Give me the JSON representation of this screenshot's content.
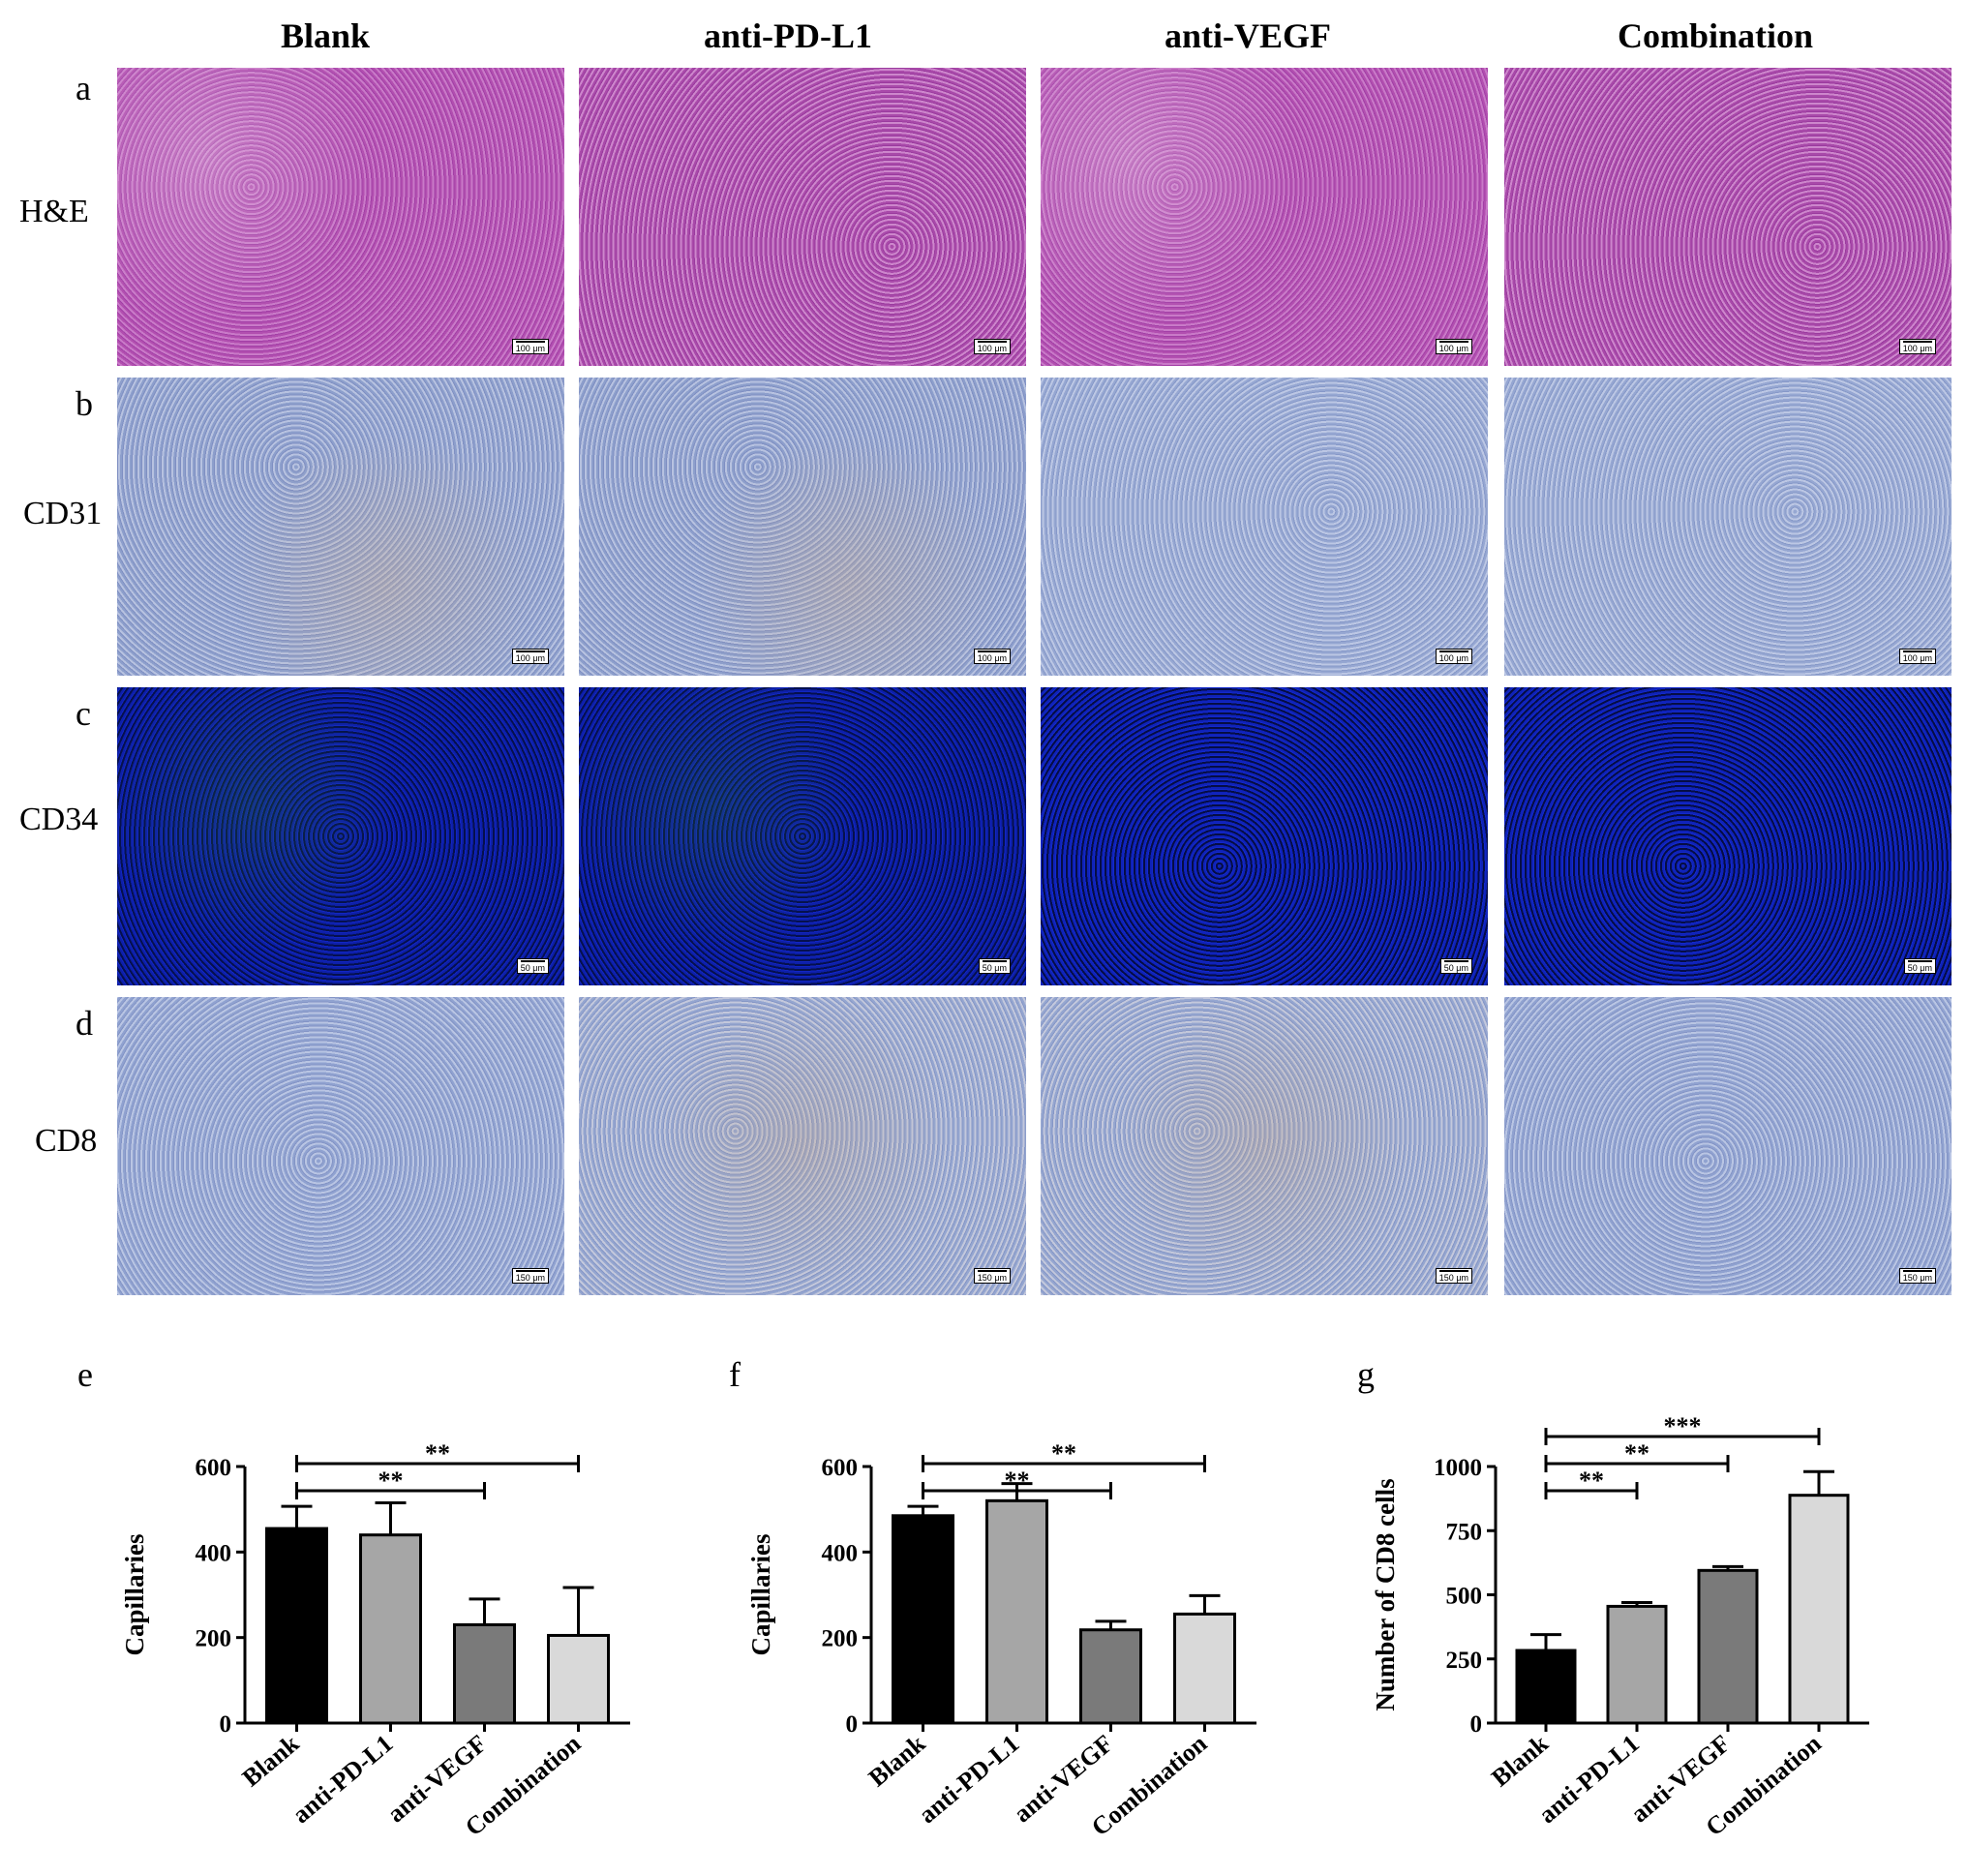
{
  "columns": [
    "Blank",
    "anti-PD-L1",
    "anti-VEGF",
    "Combination"
  ],
  "rows": [
    {
      "letter": "a",
      "label": "H&E",
      "scale": "100 μm"
    },
    {
      "letter": "b",
      "label": "CD31",
      "scale": "100 μm"
    },
    {
      "letter": "c",
      "label": "CD34",
      "scale": "50 μm"
    },
    {
      "letter": "d",
      "label": "CD8",
      "scale": "150 μm"
    }
  ],
  "chart_data": [
    {
      "panel": "e",
      "type": "bar",
      "categories": [
        "Blank",
        "anti-PD-L1",
        "anti-VEGF",
        "Combination"
      ],
      "values": [
        455,
        440,
        230,
        205
      ],
      "errors": [
        52,
        75,
        60,
        112
      ],
      "colors": [
        "#000000",
        "#a6a6a6",
        "#7a7a7a",
        "#d9d9d9"
      ],
      "ylabel": "Capillaries",
      "ylim": [
        0,
        600
      ],
      "yticks": [
        0,
        200,
        400,
        600
      ],
      "significance": [
        {
          "from": 0,
          "to": 2,
          "label": "**",
          "level": 1
        },
        {
          "from": 0,
          "to": 3,
          "label": "**",
          "level": 2
        }
      ]
    },
    {
      "panel": "f",
      "type": "bar",
      "categories": [
        "Blank",
        "anti-PD-L1",
        "anti-VEGF",
        "Combination"
      ],
      "values": [
        485,
        520,
        218,
        255
      ],
      "errors": [
        22,
        40,
        20,
        43
      ],
      "colors": [
        "#000000",
        "#a6a6a6",
        "#7a7a7a",
        "#d9d9d9"
      ],
      "ylabel": "Capillaries",
      "ylim": [
        0,
        600
      ],
      "yticks": [
        0,
        200,
        400,
        600
      ],
      "significance": [
        {
          "from": 0,
          "to": 2,
          "label": "**",
          "level": 1
        },
        {
          "from": 0,
          "to": 3,
          "label": "**",
          "level": 2
        }
      ]
    },
    {
      "panel": "g",
      "type": "bar",
      "categories": [
        "Blank",
        "anti-PD-L1",
        "anti-VEGF",
        "Combination"
      ],
      "values": [
        283,
        455,
        595,
        888
      ],
      "errors": [
        62,
        15,
        15,
        92
      ],
      "colors": [
        "#000000",
        "#a6a6a6",
        "#7a7a7a",
        "#d9d9d9"
      ],
      "ylabel": "Number of CD8 cells",
      "ylim": [
        0,
        1000
      ],
      "yticks": [
        0,
        250,
        500,
        750,
        1000
      ],
      "significance": [
        {
          "from": 0,
          "to": 1,
          "label": "**",
          "level": 1
        },
        {
          "from": 0,
          "to": 2,
          "label": "**",
          "level": 2
        },
        {
          "from": 0,
          "to": 3,
          "label": "***",
          "level": 3
        }
      ]
    }
  ]
}
